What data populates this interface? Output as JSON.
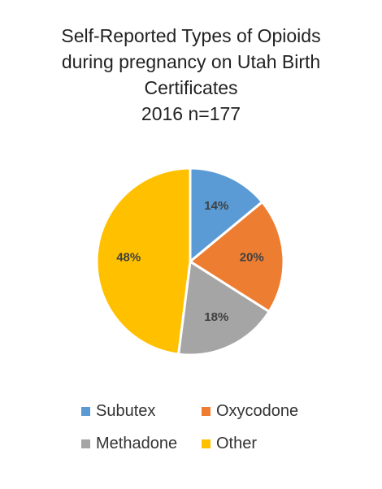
{
  "chart_data": {
    "type": "pie",
    "title_lines": [
      "Self-Reported Types of Opioids",
      "during pregnancy on Utah Birth",
      "Certificates",
      "2016 n=177"
    ],
    "categories": [
      "Subutex",
      "Oxycodone",
      "Methadone",
      "Other"
    ],
    "values": [
      14,
      20,
      18,
      48
    ],
    "labels": [
      "14%",
      "20%",
      "18%",
      "48%"
    ],
    "colors": [
      "#5B9BD5",
      "#ED7D31",
      "#A5A5A5",
      "#FFC000"
    ],
    "legend_position": "bottom"
  }
}
